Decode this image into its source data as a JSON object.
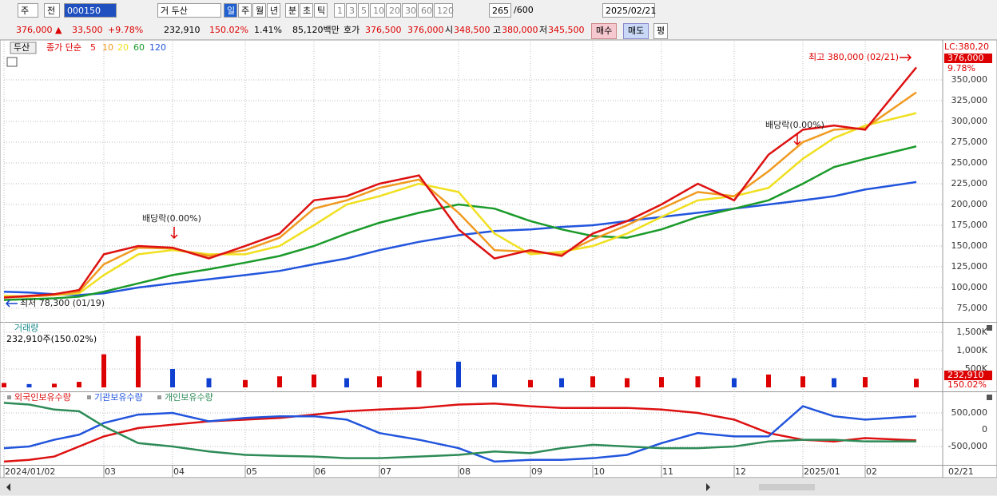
{
  "toolbar": {
    "market": "주",
    "prev": "전",
    "code": "000150",
    "name": "거 두산",
    "periods": [
      "일",
      "주",
      "월",
      "년",
      "분",
      "초",
      "틱"
    ],
    "units": [
      "1",
      "3",
      "5",
      "10",
      "20",
      "30",
      "60",
      "120"
    ],
    "count": "265",
    "total": "/600",
    "date": "2025/02/21"
  },
  "quote": {
    "price": "376,000 ▲",
    "change": "33,500",
    "rate": "+9.78%",
    "volume": "232,910",
    "volume_rate": "150.02%",
    "turnover": "1.41%",
    "amount": "85,120백만",
    "ask_label": "호가",
    "ask": "376,500",
    "bid": "376,000",
    "open_label": "시",
    "open": "348,500",
    "high_label": "고",
    "high": "380,000",
    "low_label": "저",
    "low": "345,500",
    "buy": "매수",
    "sell": "매도",
    "eval": "평"
  },
  "chart_data": [
    {
      "type": "line",
      "title": "두산",
      "legend_title": "종가 단순",
      "categories": [
        "2024/01/02",
        null,
        null,
        null,
        "03",
        null,
        "04",
        null,
        "05",
        null,
        "06",
        null,
        "07",
        null,
        "08",
        null,
        "09",
        null,
        "10",
        null,
        "11",
        null,
        "12",
        null,
        "2025/01",
        null,
        "02",
        null
      ],
      "last_category": "02/21",
      "ylim": [
        58650,
        392300
      ],
      "yticks": [
        {
          "value": 75000,
          "label": "75,000"
        },
        {
          "value": 100000,
          "label": "100,000"
        },
        {
          "value": 125000,
          "label": "125,000"
        },
        {
          "value": 150000,
          "label": "150,000"
        },
        {
          "value": 175000,
          "label": "175,000"
        },
        {
          "value": 200000,
          "label": "200,000"
        },
        {
          "value": 225000,
          "label": "225,000"
        },
        {
          "value": 250000,
          "label": "250,000"
        },
        {
          "value": 275000,
          "label": "275,000"
        },
        {
          "value": 300000,
          "label": "300,000"
        },
        {
          "value": 325000,
          "label": "325,000"
        },
        {
          "value": 350000,
          "label": "350,000"
        }
      ],
      "grid": true,
      "series": [
        {
          "name": "120",
          "color": "#2255dd",
          "values": [
            95000,
            94000,
            92000,
            91000,
            93000,
            100000,
            105000,
            110000,
            115000,
            120000,
            128000,
            135000,
            145000,
            155000,
            163000,
            168000,
            170000,
            173000,
            175000,
            180000,
            185000,
            190000,
            195000,
            200000,
            205000,
            210000,
            218000,
            227000
          ]
        },
        {
          "name": "60",
          "color": "#1a9a2a",
          "values": [
            85000,
            86000,
            87000,
            89000,
            95000,
            105000,
            115000,
            122000,
            130000,
            138000,
            150000,
            165000,
            178000,
            190000,
            200000,
            195000,
            180000,
            170000,
            162000,
            160000,
            170000,
            185000,
            195000,
            205000,
            225000,
            245000,
            255000,
            270000
          ]
        },
        {
          "name": "20",
          "color": "#f0e020",
          "values": [
            90000,
            89000,
            91000,
            93000,
            115000,
            140000,
            145000,
            140000,
            140000,
            150000,
            175000,
            200000,
            210000,
            225000,
            215000,
            165000,
            140000,
            143000,
            150000,
            165000,
            185000,
            205000,
            210000,
            220000,
            255000,
            280000,
            295000,
            310000
          ]
        },
        {
          "name": "10",
          "color": "#f09a20",
          "values": [
            88000,
            89000,
            91000,
            95000,
            128000,
            148000,
            147000,
            138000,
            145000,
            160000,
            195000,
            205000,
            220000,
            230000,
            190000,
            145000,
            143000,
            140000,
            158000,
            175000,
            195000,
            215000,
            210000,
            240000,
            275000,
            290000,
            292000,
            335000
          ]
        },
        {
          "name": "5",
          "color": "#dd1111",
          "values": [
            88000,
            90000,
            92000,
            97000,
            140000,
            150000,
            148000,
            135000,
            150000,
            165000,
            205000,
            210000,
            225000,
            235000,
            170000,
            135000,
            145000,
            138000,
            165000,
            180000,
            200000,
            225000,
            205000,
            260000,
            290000,
            295000,
            290000,
            365000
          ]
        }
      ],
      "annotations": [
        "최고 380,000 (02/21)",
        "최저 78,300 (01/19)",
        "배당락(0.00%)",
        "배당락(0.00%)"
      ],
      "right_labels": [
        "LC:380,20",
        "376,000",
        "9.78%"
      ]
    },
    {
      "type": "bar",
      "title": "거래량",
      "subtitle": "232,910주(150.02%)",
      "ylim": [
        0,
        1717000
      ],
      "yticks": [
        {
          "value": 500000,
          "label": "500K"
        },
        {
          "value": 1000000,
          "label": "1,000K"
        },
        {
          "value": 1500000,
          "label": "1,500K"
        }
      ],
      "values": [
        120000,
        90000,
        100000,
        150000,
        900000,
        1400000,
        500000,
        250000,
        200000,
        300000,
        350000,
        250000,
        300000,
        450000,
        700000,
        350000,
        200000,
        250000,
        300000,
        250000,
        280000,
        300000,
        250000,
        350000,
        300000,
        250000,
        280000,
        232910
      ],
      "colors": [
        "#d00",
        "#1040d0",
        "#d00",
        "#d00",
        "#d00",
        "#d00",
        "#1040d0",
        "#1040d0",
        "#d00",
        "#d00",
        "#d00",
        "#1040d0",
        "#d00",
        "#d00",
        "#1040d0",
        "#1040d0",
        "#d00",
        "#1040d0",
        "#d00",
        "#d00",
        "#d00",
        "#d00",
        "#1040d0",
        "#d00",
        "#d00",
        "#1040d0",
        "#d00",
        "#d00"
      ],
      "last_value_label": "232,910",
      "ratio_label": "150.02%"
    },
    {
      "type": "line",
      "ylim": [
        -1048000,
        1095000
      ],
      "yticks": [
        {
          "value": 500000,
          "label": "500,000"
        },
        0,
        {
          "value": -500000,
          "label": "-500,000"
        }
      ],
      "series": [
        {
          "name": "외국인보유수량",
          "color": "#dd1111",
          "values": [
            -950000,
            -900000,
            -800000,
            -500000,
            -200000,
            50000,
            150000,
            250000,
            300000,
            350000,
            450000,
            550000,
            600000,
            650000,
            750000,
            780000,
            700000,
            650000,
            650000,
            650000,
            600000,
            500000,
            300000,
            -100000,
            -300000,
            -350000,
            -250000,
            -320000
          ]
        },
        {
          "name": "기관보유수량",
          "color": "#2255dd",
          "values": [
            -550000,
            -500000,
            -300000,
            -150000,
            200000,
            450000,
            500000,
            250000,
            350000,
            400000,
            400000,
            300000,
            -100000,
            -300000,
            -550000,
            -950000,
            -900000,
            -900000,
            -850000,
            -750000,
            -400000,
            -100000,
            -200000,
            -200000,
            700000,
            400000,
            300000,
            400000
          ]
        },
        {
          "name": "개인보유수량",
          "color": "#2e8b57",
          "values": [
            800000,
            750000,
            600000,
            550000,
            100000,
            -400000,
            -500000,
            -650000,
            -750000,
            -780000,
            -800000,
            -850000,
            -850000,
            -800000,
            -750000,
            -650000,
            -700000,
            -550000,
            -450000,
            -500000,
            -550000,
            -550000,
            -500000,
            -350000,
            -300000,
            -300000,
            -350000,
            -350000
          ]
        }
      ]
    }
  ]
}
